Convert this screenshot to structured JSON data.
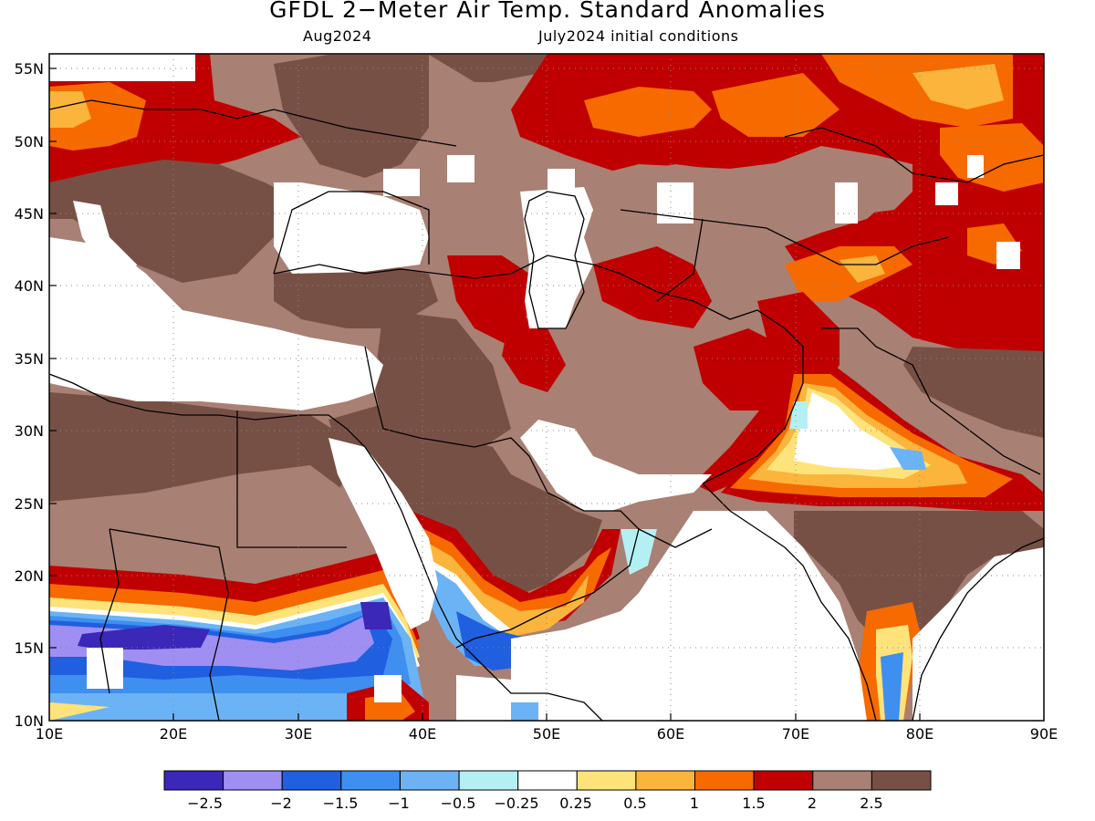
{
  "title": "GFDL 2−Meter Air Temp. Standard Anomalies",
  "subtitle_left": "Aug2024",
  "subtitle_right": "July2024 initial conditions",
  "map": {
    "lon_range": [
      10,
      90
    ],
    "lat_range": [
      10,
      56
    ],
    "lat_ticks": [
      "55N",
      "50N",
      "45N",
      "40N",
      "35N",
      "30N",
      "25N",
      "20N",
      "15N",
      "10N"
    ],
    "lon_ticks": [
      "10E",
      "20E",
      "30E",
      "40E",
      "50E",
      "60E",
      "70E",
      "80E",
      "90E"
    ],
    "grid": "dotted"
  },
  "legend": {
    "colors": [
      "#3b27b8",
      "#9f8ff2",
      "#1f5fe0",
      "#3e8ff0",
      "#6cb3f5",
      "#b4f0f3",
      "#ffffff",
      "#fee37a",
      "#fbb43c",
      "#f66a00",
      "#c00000",
      "#a98074",
      "#775045"
    ],
    "labels": [
      "−2.5",
      "−2",
      "−1.5",
      "−1",
      "−0.5",
      "−0.25",
      "0.25",
      "0.5",
      "1",
      "1.5",
      "2",
      "2.5"
    ]
  }
}
